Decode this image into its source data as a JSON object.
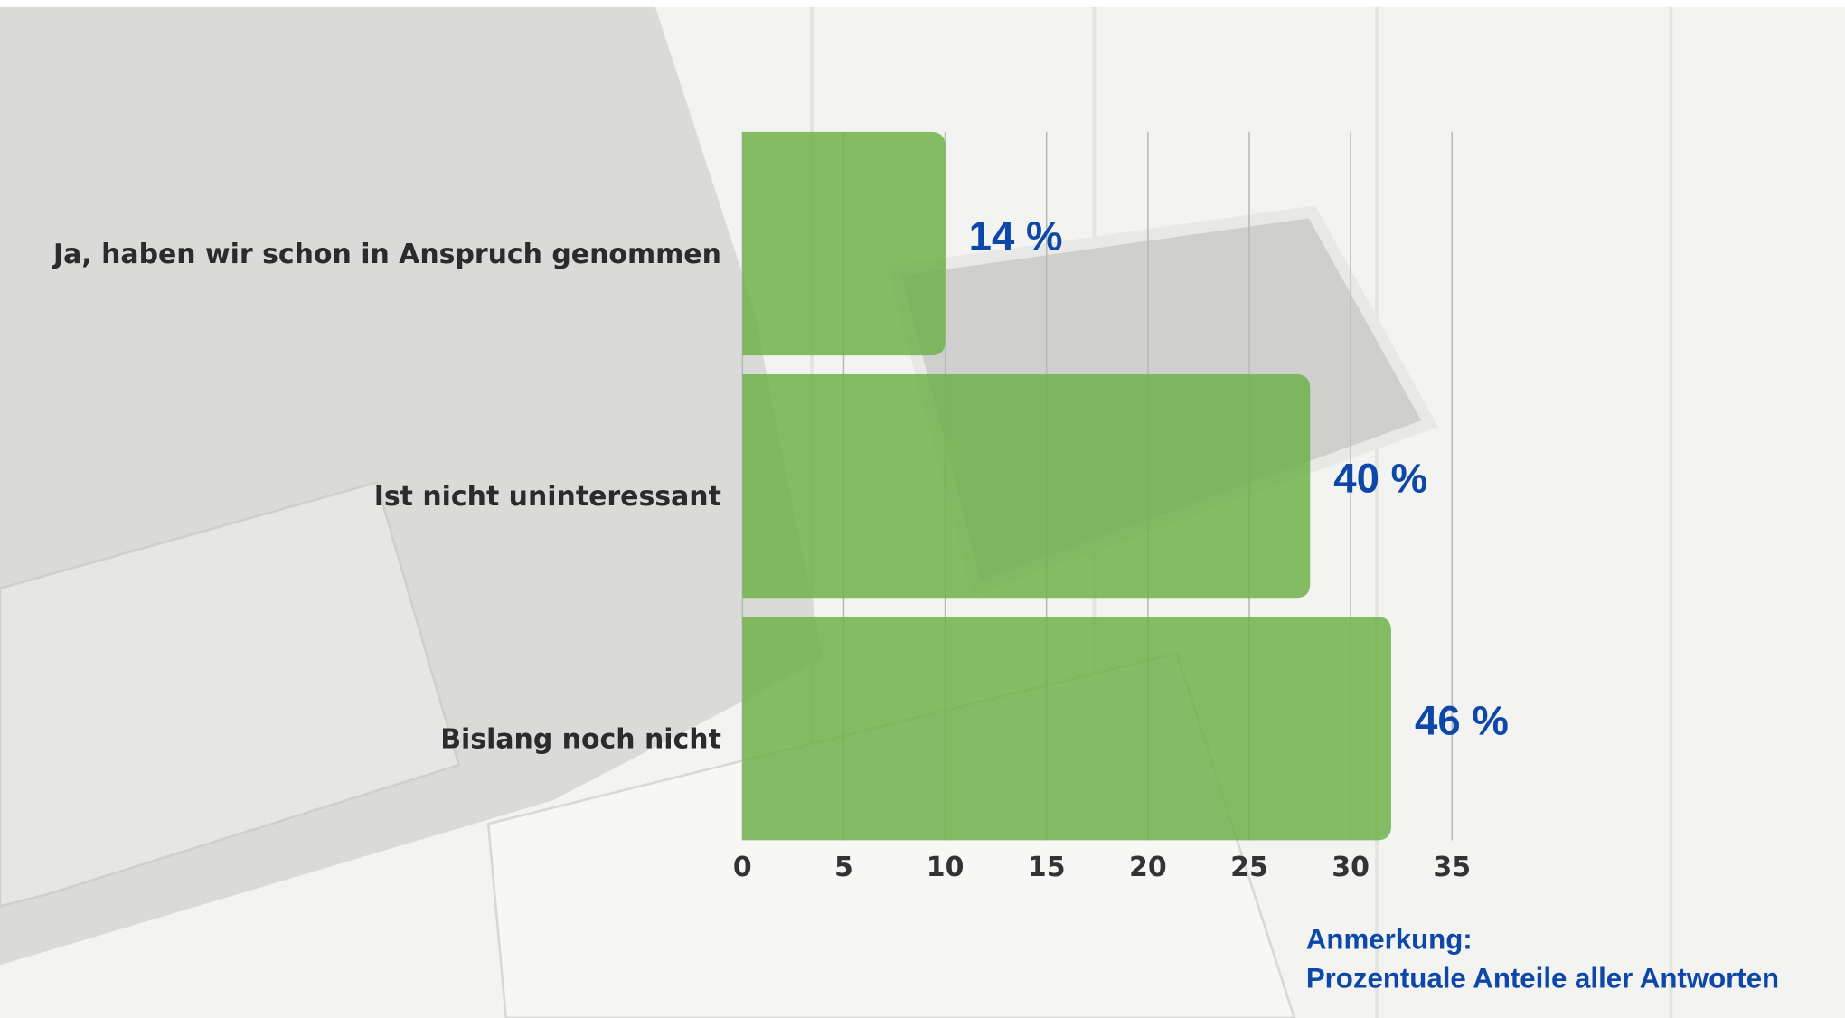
{
  "chart_data": {
    "type": "barh",
    "categories": [
      "Ja, haben wir schon in Anspruch genommen",
      "Ist nicht uninteressant",
      "Bislang noch nicht"
    ],
    "values": [
      10,
      28,
      32
    ],
    "value_labels": [
      "14 %",
      "40 %",
      "46 %"
    ],
    "color": "#6fb24a",
    "xlim": [
      0,
      35
    ],
    "xticks": [
      0,
      5,
      10,
      15,
      20,
      25,
      30,
      35
    ],
    "grid": true,
    "annotations": [
      "Anmerkung:",
      "Prozentuale Anteile aller Antworten"
    ]
  }
}
